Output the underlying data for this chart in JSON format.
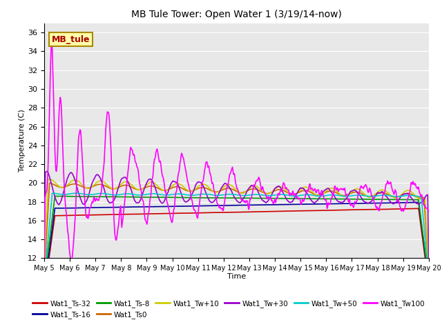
{
  "title": "MB Tule Tower: Open Water 1 (3/19/14-now)",
  "xlabel": "Time",
  "ylabel": "Temperature (C)",
  "ylim": [
    12,
    37
  ],
  "yticks": [
    12,
    14,
    16,
    18,
    20,
    22,
    24,
    26,
    28,
    30,
    32,
    34,
    36
  ],
  "xlim": [
    5,
    20
  ],
  "background_color": "#e8e8e8",
  "grid_color": "#ffffff",
  "series_order": [
    "Wat1_Ts-32",
    "Wat1_Ts-16",
    "Wat1_Ts-8",
    "Wat1_Ts0",
    "Wat1_Tw+10",
    "Wat1_Tw+30",
    "Wat1_Tw+50",
    "Wat1_Tw100"
  ],
  "series": {
    "Wat1_Ts-32": {
      "color": "#cc0000",
      "lw": 1.2
    },
    "Wat1_Ts-16": {
      "color": "#000099",
      "lw": 1.2
    },
    "Wat1_Ts-8": {
      "color": "#009900",
      "lw": 1.2
    },
    "Wat1_Ts0": {
      "color": "#cc6600",
      "lw": 1.2
    },
    "Wat1_Tw+10": {
      "color": "#cccc00",
      "lw": 1.2
    },
    "Wat1_Tw+30": {
      "color": "#9900cc",
      "lw": 1.2
    },
    "Wat1_Tw+50": {
      "color": "#00cccc",
      "lw": 1.2
    },
    "Wat1_Tw100": {
      "color": "#ff00ff",
      "lw": 1.2
    }
  },
  "label_box": {
    "text": "MB_tule",
    "facecolor": "#ffffaa",
    "edgecolor": "#aa8800",
    "textcolor": "#aa0000",
    "fontsize": 9,
    "fontweight": "bold"
  }
}
